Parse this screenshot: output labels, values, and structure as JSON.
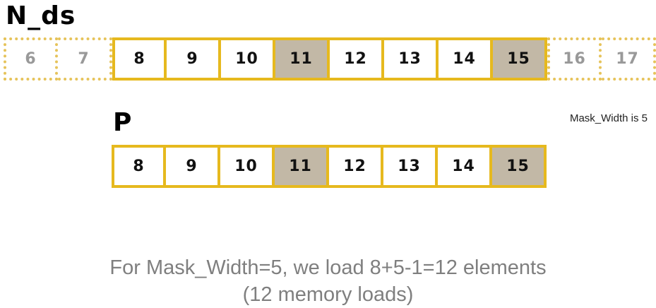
{
  "nds": {
    "title": "N_ds",
    "cells": [
      {
        "label": "6",
        "state": "ghost"
      },
      {
        "label": "7",
        "state": "ghost"
      },
      {
        "label": "8",
        "state": "normal"
      },
      {
        "label": "9",
        "state": "normal"
      },
      {
        "label": "10",
        "state": "normal"
      },
      {
        "label": "11",
        "state": "shaded"
      },
      {
        "label": "12",
        "state": "normal"
      },
      {
        "label": "13",
        "state": "normal"
      },
      {
        "label": "14",
        "state": "normal"
      },
      {
        "label": "15",
        "state": "shaded"
      },
      {
        "label": "16",
        "state": "ghost"
      },
      {
        "label": "17",
        "state": "ghost"
      }
    ]
  },
  "p": {
    "title": "P",
    "cells": [
      {
        "label": "8",
        "state": "normal"
      },
      {
        "label": "9",
        "state": "normal"
      },
      {
        "label": "10",
        "state": "normal"
      },
      {
        "label": "11",
        "state": "shaded"
      },
      {
        "label": "12",
        "state": "normal"
      },
      {
        "label": "13",
        "state": "normal"
      },
      {
        "label": "14",
        "state": "normal"
      },
      {
        "label": "15",
        "state": "shaded"
      }
    ]
  },
  "mask_note": "Mask_Width is 5",
  "caption": {
    "line1": "For Mask_Width=5, we load 8+5-1=12 elements",
    "line2": "(12 memory loads)"
  },
  "colors": {
    "border": "#e6b91e",
    "shaded_fill": "#c2b8a6",
    "ghost_border": "#e6c35a",
    "ghost_text": "#999999",
    "caption_text": "#7f7f7f"
  }
}
